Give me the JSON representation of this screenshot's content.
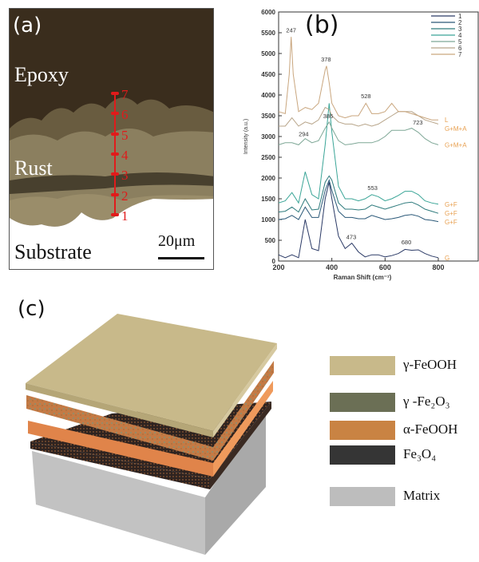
{
  "panel_a": {
    "label": "(a)",
    "regions": [
      "Epoxy",
      "Rust",
      "Substrate"
    ],
    "scale_bar": "20μm",
    "points": [
      "1",
      "2",
      "3",
      "4",
      "5",
      "6",
      "7"
    ],
    "colors": {
      "epoxy": "#3a2d1d",
      "rust": "#8b7f5f",
      "substrate": "#ffffff",
      "marker": "#e01b1b"
    }
  },
  "panel_b": {
    "label": "(b)"
  },
  "chart_data": {
    "type": "line",
    "xlabel": "Raman Shift (cm⁻¹)",
    "ylabel": "Intensity (a.u.)",
    "xlim": [
      200,
      950
    ],
    "ylim": [
      0,
      6000
    ],
    "xticks": [
      200,
      400,
      600,
      800
    ],
    "yticks": [
      0,
      500,
      1000,
      1500,
      2000,
      2500,
      3000,
      3500,
      4000,
      4500,
      5000,
      5500,
      6000
    ],
    "grid": false,
    "legend_placement": "top-right",
    "series": [
      {
        "name": "1",
        "color": "#2b3a66",
        "phase": "G",
        "points": [
          [
            200,
            150
          ],
          [
            225,
            80
          ],
          [
            250,
            150
          ],
          [
            275,
            80
          ],
          [
            300,
            1000
          ],
          [
            325,
            300
          ],
          [
            350,
            250
          ],
          [
            375,
            1500
          ],
          [
            390,
            1900
          ],
          [
            400,
            1500
          ],
          [
            425,
            600
          ],
          [
            450,
            300
          ],
          [
            475,
            430
          ],
          [
            500,
            220
          ],
          [
            525,
            100
          ],
          [
            550,
            150
          ],
          [
            575,
            150
          ],
          [
            600,
            100
          ],
          [
            625,
            130
          ],
          [
            650,
            180
          ],
          [
            675,
            280
          ],
          [
            700,
            260
          ],
          [
            725,
            270
          ],
          [
            750,
            180
          ],
          [
            775,
            120
          ],
          [
            800,
            80
          ]
        ]
      },
      {
        "name": "2",
        "color": "#2a5878",
        "phase": "G+F",
        "points": [
          [
            200,
            1000
          ],
          [
            225,
            1020
          ],
          [
            250,
            1100
          ],
          [
            275,
            1000
          ],
          [
            300,
            1300
          ],
          [
            325,
            1050
          ],
          [
            350,
            1050
          ],
          [
            375,
            1700
          ],
          [
            390,
            1950
          ],
          [
            400,
            1700
          ],
          [
            425,
            1200
          ],
          [
            450,
            1050
          ],
          [
            475,
            1050
          ],
          [
            500,
            1020
          ],
          [
            525,
            1020
          ],
          [
            550,
            1100
          ],
          [
            575,
            1050
          ],
          [
            600,
            1000
          ],
          [
            625,
            1020
          ],
          [
            650,
            1050
          ],
          [
            675,
            1100
          ],
          [
            700,
            1120
          ],
          [
            725,
            1080
          ],
          [
            750,
            1000
          ],
          [
            775,
            980
          ],
          [
            800,
            950
          ]
        ]
      },
      {
        "name": "3",
        "color": "#2d7a7c",
        "phase": "G+F",
        "points": [
          [
            200,
            1180
          ],
          [
            225,
            1200
          ],
          [
            250,
            1300
          ],
          [
            275,
            1180
          ],
          [
            300,
            1500
          ],
          [
            325,
            1230
          ],
          [
            350,
            1250
          ],
          [
            375,
            1900
          ],
          [
            390,
            2050
          ],
          [
            400,
            1950
          ],
          [
            425,
            1400
          ],
          [
            450,
            1250
          ],
          [
            475,
            1250
          ],
          [
            500,
            1230
          ],
          [
            525,
            1250
          ],
          [
            550,
            1350
          ],
          [
            575,
            1300
          ],
          [
            600,
            1250
          ],
          [
            625,
            1300
          ],
          [
            650,
            1350
          ],
          [
            675,
            1400
          ],
          [
            700,
            1420
          ],
          [
            725,
            1350
          ],
          [
            750,
            1250
          ],
          [
            775,
            1200
          ],
          [
            800,
            1150
          ]
        ]
      },
      {
        "name": "4",
        "color": "#3aa597",
        "phase": "G+F",
        "points": [
          [
            200,
            1400
          ],
          [
            225,
            1450
          ],
          [
            250,
            1650
          ],
          [
            275,
            1400
          ],
          [
            300,
            2150
          ],
          [
            325,
            1600
          ],
          [
            350,
            1500
          ],
          [
            375,
            2800
          ],
          [
            390,
            3800
          ],
          [
            400,
            3100
          ],
          [
            425,
            1800
          ],
          [
            450,
            1500
          ],
          [
            475,
            1500
          ],
          [
            500,
            1450
          ],
          [
            525,
            1500
          ],
          [
            550,
            1600
          ],
          [
            575,
            1550
          ],
          [
            600,
            1450
          ],
          [
            625,
            1500
          ],
          [
            650,
            1580
          ],
          [
            675,
            1680
          ],
          [
            700,
            1680
          ],
          [
            725,
            1600
          ],
          [
            750,
            1450
          ],
          [
            775,
            1400
          ],
          [
            800,
            1370
          ]
        ]
      },
      {
        "name": "5",
        "color": "#7ea796",
        "phase": "G+M+A",
        "points": [
          [
            200,
            2800
          ],
          [
            225,
            2850
          ],
          [
            250,
            2850
          ],
          [
            275,
            2800
          ],
          [
            300,
            2950
          ],
          [
            325,
            2850
          ],
          [
            350,
            2900
          ],
          [
            375,
            3200
          ],
          [
            390,
            3350
          ],
          [
            400,
            3200
          ],
          [
            425,
            2900
          ],
          [
            450,
            2800
          ],
          [
            475,
            2820
          ],
          [
            500,
            2850
          ],
          [
            525,
            2850
          ],
          [
            550,
            2850
          ],
          [
            575,
            2900
          ],
          [
            600,
            3000
          ],
          [
            625,
            3150
          ],
          [
            650,
            3150
          ],
          [
            675,
            3150
          ],
          [
            700,
            3200
          ],
          [
            725,
            3100
          ],
          [
            750,
            2950
          ],
          [
            775,
            2850
          ],
          [
            800,
            2800
          ]
        ]
      },
      {
        "name": "6",
        "color": "#b8a58a",
        "phase": "G+M+A",
        "points": [
          [
            200,
            3250
          ],
          [
            225,
            3250
          ],
          [
            250,
            3450
          ],
          [
            275,
            3250
          ],
          [
            300,
            3350
          ],
          [
            325,
            3300
          ],
          [
            350,
            3400
          ],
          [
            375,
            3700
          ],
          [
            390,
            3650
          ],
          [
            400,
            3500
          ],
          [
            425,
            3350
          ],
          [
            450,
            3300
          ],
          [
            475,
            3300
          ],
          [
            500,
            3250
          ],
          [
            525,
            3300
          ],
          [
            550,
            3250
          ],
          [
            575,
            3300
          ],
          [
            600,
            3400
          ],
          [
            625,
            3500
          ],
          [
            650,
            3600
          ],
          [
            675,
            3600
          ],
          [
            700,
            3600
          ],
          [
            725,
            3500
          ],
          [
            750,
            3400
          ],
          [
            775,
            3350
          ],
          [
            800,
            3300
          ]
        ]
      },
      {
        "name": "7",
        "color": "#c9a67e",
        "phase": "L",
        "points": [
          [
            200,
            3600
          ],
          [
            225,
            3550
          ],
          [
            240,
            4500
          ],
          [
            247,
            5400
          ],
          [
            255,
            4500
          ],
          [
            275,
            3600
          ],
          [
            300,
            3700
          ],
          [
            325,
            3650
          ],
          [
            350,
            3800
          ],
          [
            375,
            4600
          ],
          [
            380,
            4700
          ],
          [
            390,
            4300
          ],
          [
            400,
            3800
          ],
          [
            425,
            3500
          ],
          [
            450,
            3450
          ],
          [
            475,
            3500
          ],
          [
            500,
            3500
          ],
          [
            528,
            3800
          ],
          [
            550,
            3550
          ],
          [
            575,
            3550
          ],
          [
            600,
            3600
          ],
          [
            625,
            3800
          ],
          [
            650,
            3600
          ],
          [
            675,
            3600
          ],
          [
            700,
            3550
          ],
          [
            725,
            3500
          ],
          [
            750,
            3450
          ],
          [
            775,
            3400
          ],
          [
            800,
            3400
          ]
        ]
      }
    ],
    "peak_labels": [
      {
        "text": "247",
        "x": 247,
        "y": 5450
      },
      {
        "text": "378",
        "x": 378,
        "y": 4750
      },
      {
        "text": "528",
        "x": 528,
        "y": 3870
      },
      {
        "text": "386",
        "x": 386,
        "y": 3380
      },
      {
        "text": "294",
        "x": 294,
        "y": 2950
      },
      {
        "text": "723",
        "x": 723,
        "y": 3230
      },
      {
        "text": "553",
        "x": 553,
        "y": 1650
      },
      {
        "text": "473",
        "x": 473,
        "y": 470
      },
      {
        "text": "680",
        "x": 680,
        "y": 350
      }
    ],
    "phase_label_color": "#e8a050"
  },
  "panel_c": {
    "label": "(c)",
    "legend": [
      {
        "label": "γ-FeOOH",
        "color": "#c8b98a"
      },
      {
        "label": "γ -Fe₂O₃",
        "color": "#6b6f55"
      },
      {
        "label": "α-FeOOH",
        "color": "#c98343"
      },
      {
        "label": "Fe₃O₄",
        "color": "#353535"
      },
      {
        "label": "Matrix",
        "color": "#bdbdbd"
      }
    ]
  }
}
